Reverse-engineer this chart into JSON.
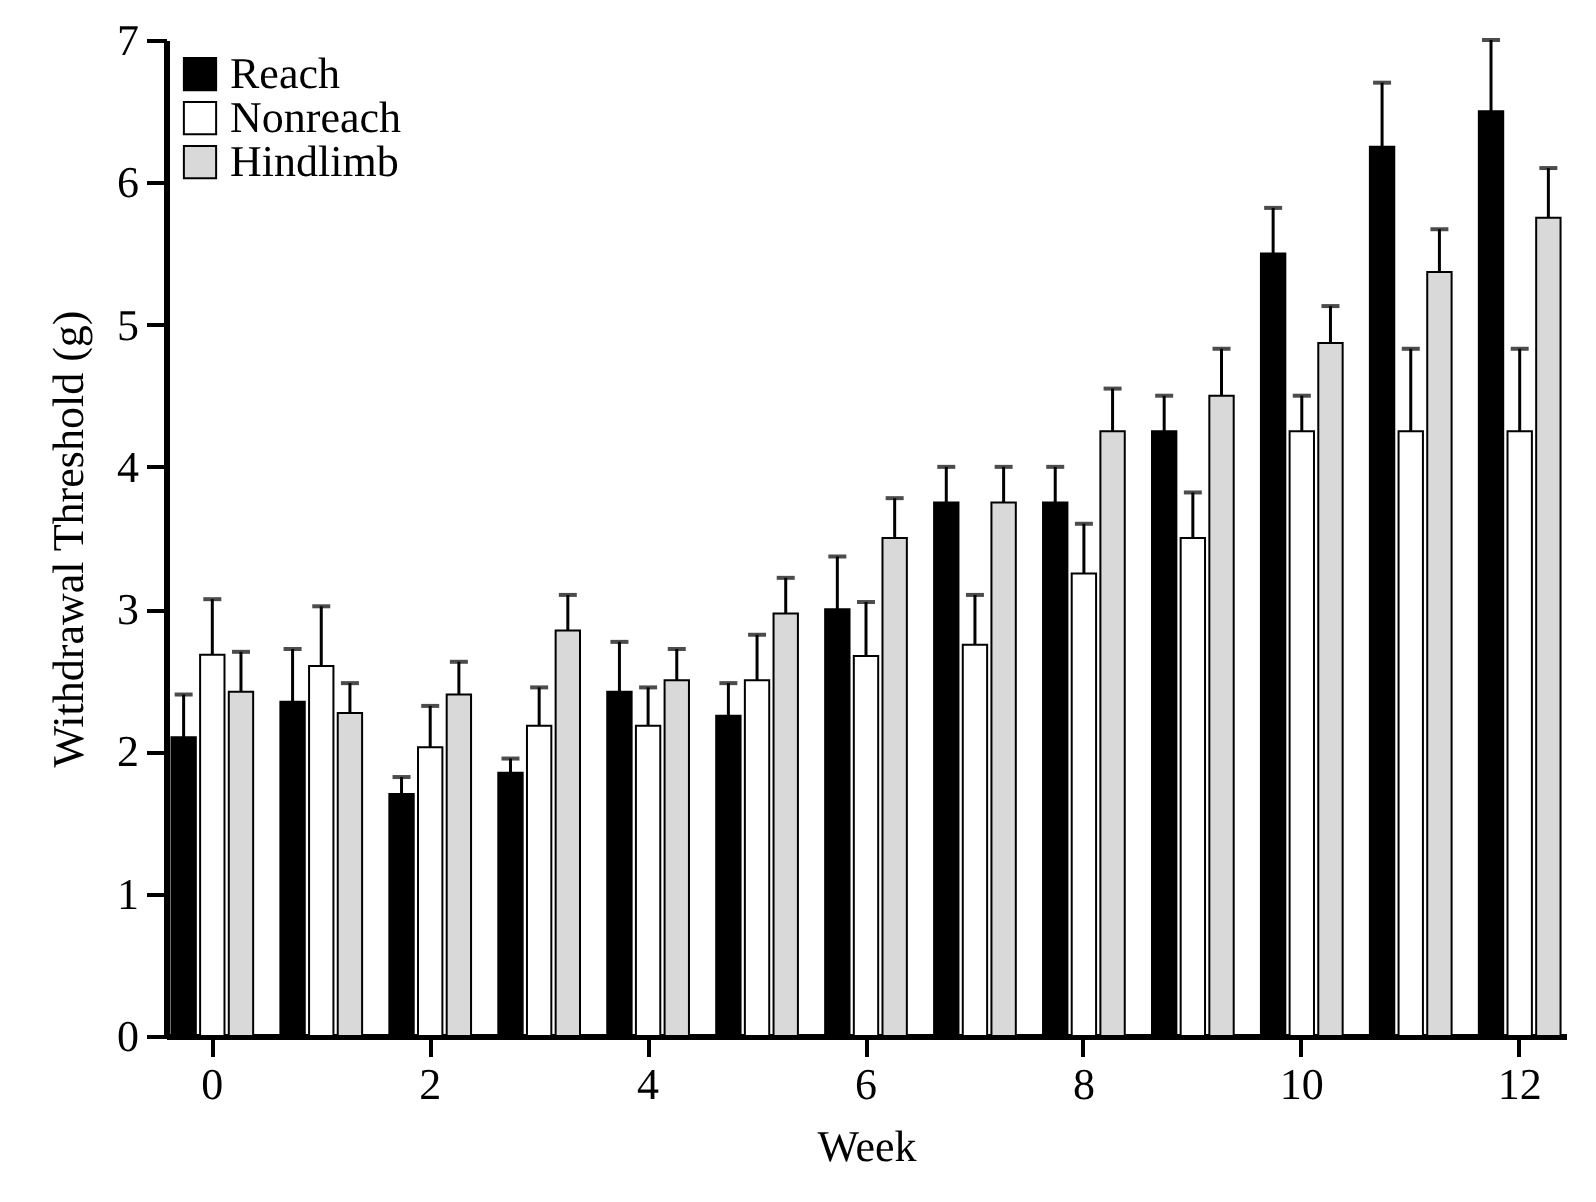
{
  "chart_data": {
    "type": "bar",
    "xlabel": "Week",
    "ylabel": "Withdrawal Threshold (g)",
    "categories": [
      "0",
      null,
      "2",
      null,
      "4",
      null,
      "6",
      null,
      "8",
      null,
      "10",
      null,
      "12"
    ],
    "series": [
      {
        "name": "Reach",
        "color": "#000000",
        "values": [
          2.1,
          2.35,
          1.7,
          1.85,
          2.42,
          2.25,
          3.0,
          3.75,
          3.75,
          4.25,
          5.5,
          6.25,
          6.5
        ],
        "errors": [
          0.3,
          0.37,
          0.12,
          0.1,
          0.35,
          0.23,
          0.37,
          0.25,
          0.25,
          0.25,
          0.32,
          0.45,
          0.5
        ]
      },
      {
        "name": "Nonreach",
        "color": "#ffffff",
        "values": [
          2.68,
          2.6,
          2.03,
          2.18,
          2.18,
          2.5,
          2.67,
          2.75,
          3.25,
          3.5,
          4.25,
          4.25,
          4.25
        ],
        "errors": [
          0.39,
          0.42,
          0.29,
          0.27,
          0.27,
          0.32,
          0.38,
          0.35,
          0.35,
          0.32,
          0.25,
          0.58,
          0.58
        ]
      },
      {
        "name": "Hindlimb",
        "color": "#d9d9d9",
        "values": [
          2.42,
          2.27,
          2.4,
          2.85,
          2.5,
          2.97,
          3.5,
          3.75,
          4.25,
          4.5,
          4.87,
          5.37,
          5.75
        ],
        "errors": [
          0.28,
          0.21,
          0.23,
          0.25,
          0.22,
          0.25,
          0.28,
          0.25,
          0.3,
          0.33,
          0.26,
          0.3,
          0.35
        ]
      }
    ],
    "ylim": [
      0,
      7
    ],
    "yticks": [
      0,
      1,
      2,
      3,
      4,
      5,
      6,
      7
    ],
    "grid": false,
    "legend": "top left"
  }
}
